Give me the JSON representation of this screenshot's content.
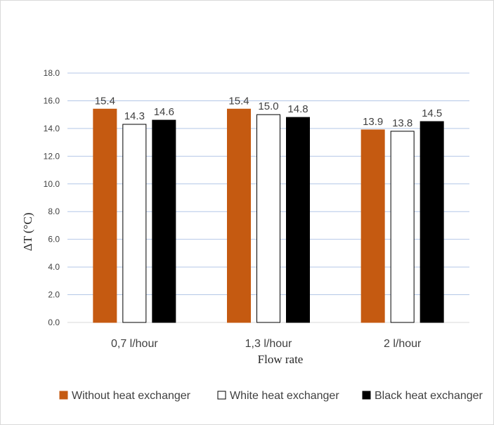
{
  "chart_data": {
    "type": "bar",
    "categories": [
      "0,7 l/hour",
      "1,3 l/hour",
      "2 l/hour"
    ],
    "series": [
      {
        "name": "Without heat exchanger",
        "values": [
          15.4,
          15.4,
          13.9
        ],
        "color": "#c55a11",
        "stroke": "#c55a11"
      },
      {
        "name": "White heat exchanger",
        "values": [
          14.3,
          15.0,
          13.8
        ],
        "color": "#ffffff",
        "stroke": "#000000"
      },
      {
        "name": "Black heat exchanger",
        "values": [
          14.6,
          14.8,
          14.5
        ],
        "color": "#000000",
        "stroke": "#000000"
      }
    ],
    "data_labels": [
      [
        "15.4",
        "15.4",
        "13.9"
      ],
      [
        "14.3",
        "15.0",
        "13.8"
      ],
      [
        "14.6",
        "14.8",
        "14.5"
      ]
    ],
    "yticks": [
      "0.0",
      "2.0",
      "4.0",
      "6.0",
      "8.0",
      "10.0",
      "12.0",
      "14.0",
      "16.0",
      "18.0"
    ],
    "ylim": [
      0,
      18
    ],
    "xlabel": "Flow rate",
    "ylabel": "ΔT (°C)",
    "grid": true,
    "gridline_color": "#b4c7e7",
    "legend_position": "bottom"
  }
}
